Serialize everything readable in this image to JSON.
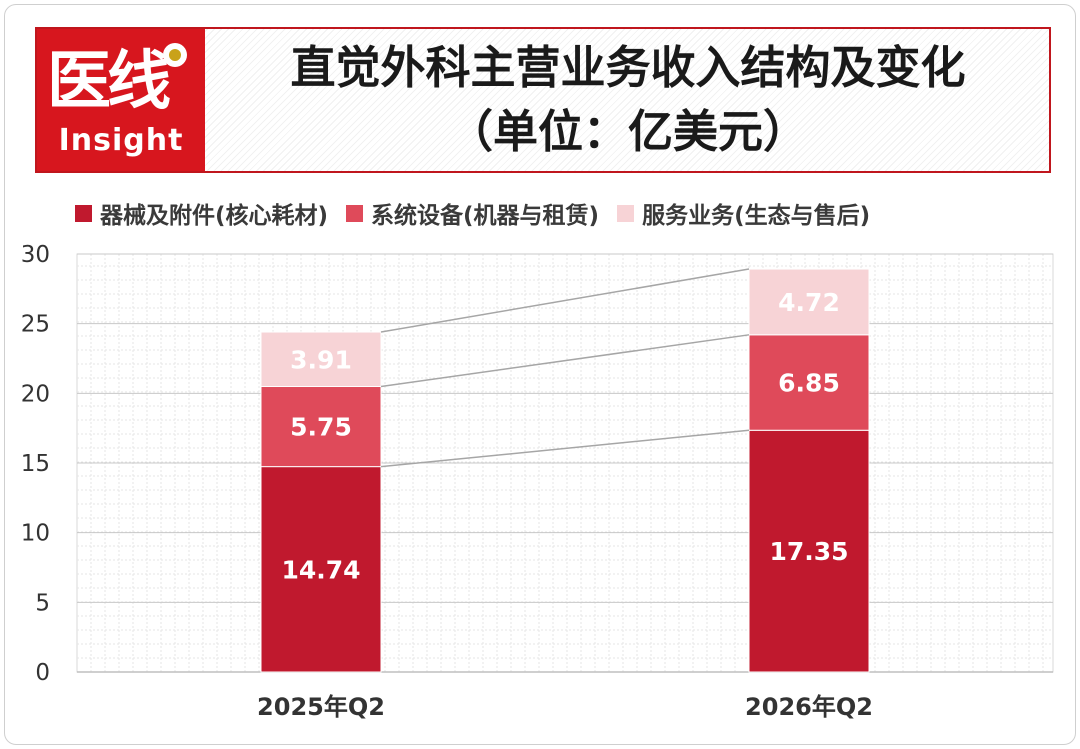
{
  "logo": {
    "mark": "医线",
    "word": "Insight"
  },
  "chart_data": {
    "type": "bar",
    "stacked": true,
    "title": "直觉外科主营业务收入结构及变化",
    "subtitle": "（单位：亿美元）",
    "categories": [
      "2025年Q2",
      "2026年Q2"
    ],
    "series": [
      {
        "name": "器械及附件(核心耗材)",
        "values": [
          14.74,
          17.35
        ],
        "color": "#c0192e"
      },
      {
        "name": "系统设备(机器与租赁)",
        "values": [
          5.75,
          6.85
        ],
        "color": "#df4a5a"
      },
      {
        "name": "服务业务(生态与售后)",
        "values": [
          3.91,
          4.72
        ],
        "color": "#f7d3d6"
      }
    ],
    "ylim": [
      0,
      30
    ],
    "yticks": [
      0,
      5,
      10,
      15,
      20,
      25,
      30
    ],
    "grid": true,
    "legend": "top",
    "connector_lines": true
  }
}
